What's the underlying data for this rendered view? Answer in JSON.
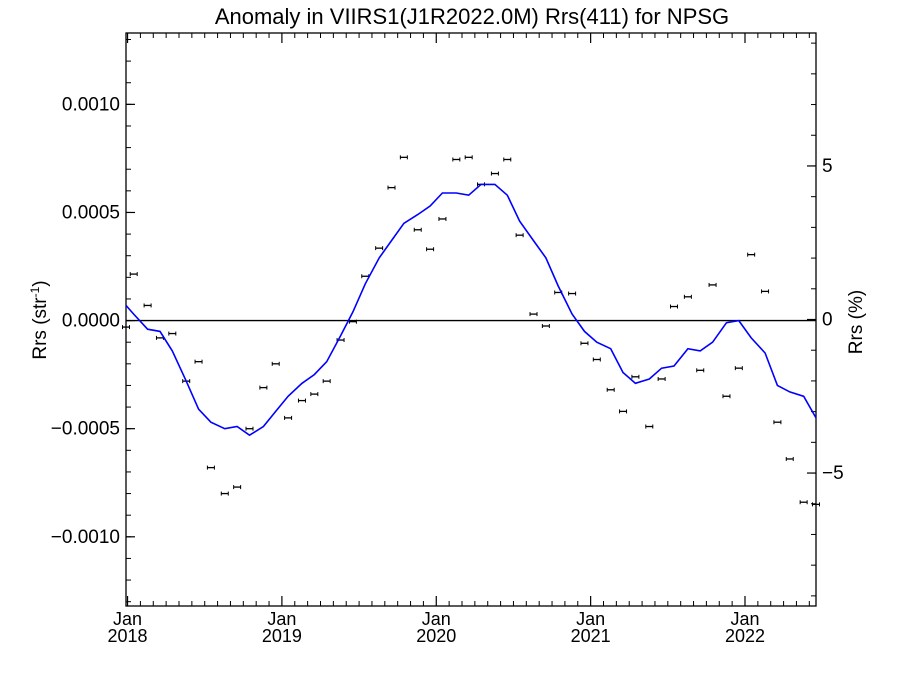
{
  "chart_data": {
    "type": "scatter",
    "title": "Anomaly in VIIRS1(J1R2022.0M) Rrs(411) for NPSG",
    "ylabel_left": "Rrs (str",
    "ylabel_left_sup": "-1",
    "ylabel_left_close": ")",
    "ylabel_right": "Rrs (%)",
    "ylim": [
      -0.00132,
      0.00133
    ],
    "ylim_right": [
      -9.33,
      9.33
    ],
    "xlim": [
      2017.99,
      2022.46
    ],
    "zero_line": true,
    "grid": false,
    "x_ticks": [
      {
        "x": 2018.0,
        "month": "Jan",
        "year": "2018"
      },
      {
        "x": 2019.0,
        "month": "Jan",
        "year": "2019"
      },
      {
        "x": 2020.0,
        "month": "Jan",
        "year": "2020"
      },
      {
        "x": 2021.0,
        "month": "Jan",
        "year": "2021"
      },
      {
        "x": 2022.0,
        "month": "Jan",
        "year": "2022"
      }
    ],
    "y_ticks_left": [
      {
        "v": 0.001,
        "label": "0.0010"
      },
      {
        "v": 0.0005,
        "label": "0.0005"
      },
      {
        "v": 0.0,
        "label": "0.0000"
      },
      {
        "v": -0.0005,
        "label": "−0.0005"
      },
      {
        "v": -0.001,
        "label": "−0.0010"
      }
    ],
    "y_ticks_right": [
      {
        "v": 5,
        "label": "5"
      },
      {
        "v": 0,
        "label": "0"
      },
      {
        "v": -5,
        "label": "−5"
      }
    ],
    "series": [
      {
        "kind": "points",
        "color": "#000000",
        "x": [
          2017.99,
          2018.04,
          2018.13,
          2018.21,
          2018.29,
          2018.38,
          2018.46,
          2018.54,
          2018.63,
          2018.71,
          2018.79,
          2018.88,
          2018.96,
          2019.04,
          2019.13,
          2019.21,
          2019.29,
          2019.38,
          2019.46,
          2019.54,
          2019.63,
          2019.71,
          2019.79,
          2019.88,
          2019.96,
          2020.04,
          2020.13,
          2020.21,
          2020.29,
          2020.38,
          2020.46,
          2020.54,
          2020.63,
          2020.71,
          2020.79,
          2020.88,
          2020.96,
          2021.04,
          2021.13,
          2021.21,
          2021.29,
          2021.38,
          2021.46,
          2021.54,
          2021.63,
          2021.71,
          2021.79,
          2021.88,
          2021.96,
          2022.04,
          2022.13,
          2022.21,
          2022.29,
          2022.38,
          2022.46
        ],
        "y": [
          -3e-05,
          0.000215,
          7e-05,
          -8e-05,
          -6e-05,
          -0.00028,
          -0.00019,
          -0.00068,
          -0.0008,
          -0.00077,
          -0.0005,
          -0.00031,
          -0.0002,
          -0.00045,
          -0.00037,
          -0.00034,
          -0.00028,
          -9e-05,
          -5e-06,
          0.000205,
          0.000335,
          0.000615,
          0.000755,
          0.00042,
          0.00033,
          0.00047,
          0.000745,
          0.000755,
          0.00063,
          0.00068,
          0.000745,
          0.000395,
          3e-05,
          -2.5e-05,
          0.00013,
          0.000125,
          -0.000105,
          -0.00018,
          -0.00032,
          -0.00042,
          -0.00026,
          -0.00049,
          -0.00027,
          6.5e-05,
          0.00011,
          -0.00023,
          0.000165,
          -0.00035,
          -0.00022,
          0.000305,
          0.000135,
          -0.00047,
          -0.00064,
          -0.00084,
          -0.00085
        ]
      },
      {
        "kind": "line",
        "color": "#0000ff",
        "x": [
          2017.99,
          2018.04,
          2018.13,
          2018.21,
          2018.29,
          2018.38,
          2018.46,
          2018.54,
          2018.63,
          2018.71,
          2018.79,
          2018.88,
          2018.96,
          2019.04,
          2019.13,
          2019.21,
          2019.29,
          2019.38,
          2019.46,
          2019.54,
          2019.63,
          2019.71,
          2019.79,
          2019.88,
          2019.96,
          2020.04,
          2020.13,
          2020.21,
          2020.29,
          2020.38,
          2020.46,
          2020.54,
          2020.63,
          2020.71,
          2020.79,
          2020.88,
          2020.96,
          2021.04,
          2021.13,
          2021.21,
          2021.29,
          2021.38,
          2021.46,
          2021.54,
          2021.63,
          2021.71,
          2021.79,
          2021.88,
          2021.96,
          2022.04,
          2022.13,
          2022.21,
          2022.29,
          2022.38,
          2022.46
        ],
        "y": [
          7e-05,
          3e-05,
          -4e-05,
          -5e-05,
          -0.00014,
          -0.00028,
          -0.00041,
          -0.00047,
          -0.0005,
          -0.00049,
          -0.00053,
          -0.00049,
          -0.00042,
          -0.00035,
          -0.00029,
          -0.00025,
          -0.00019,
          -7e-05,
          4e-05,
          0.00017,
          0.00029,
          0.00037,
          0.00045,
          0.00049,
          0.00053,
          0.00059,
          0.00059,
          0.00058,
          0.00063,
          0.00063,
          0.00058,
          0.00046,
          0.00037,
          0.00029,
          0.00016,
          3e-05,
          -5e-05,
          -0.0001,
          -0.00013,
          -0.00024,
          -0.00029,
          -0.00027,
          -0.00022,
          -0.00021,
          -0.00013,
          -0.00014,
          -0.0001,
          -1e-05,
          0.0,
          -8e-05,
          -0.00015,
          -0.0003,
          -0.00033,
          -0.00035,
          -0.00045
        ]
      }
    ]
  }
}
